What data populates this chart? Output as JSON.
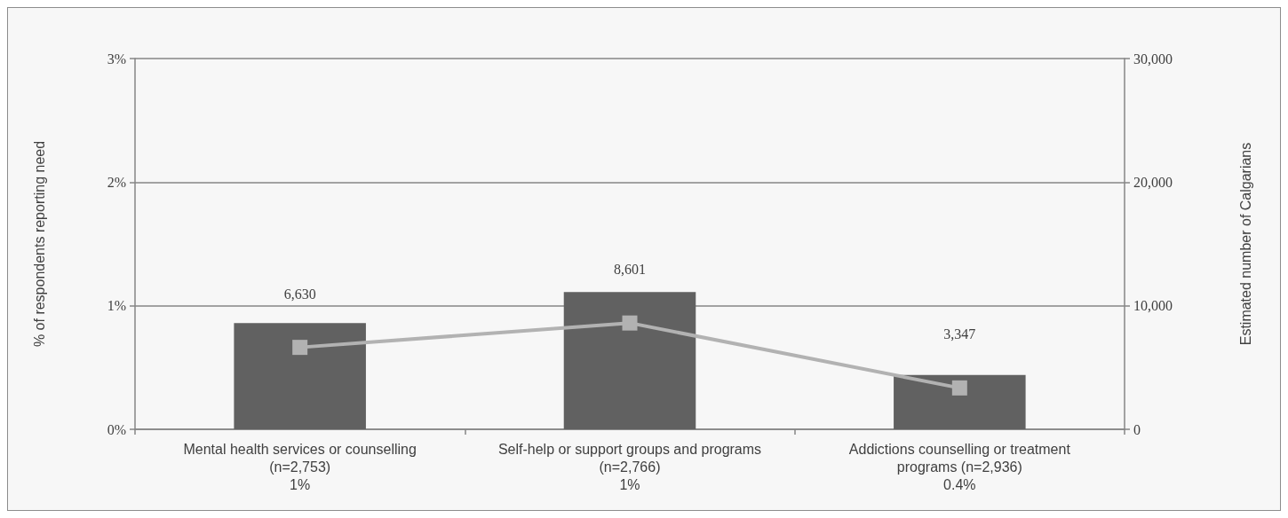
{
  "chart_data": {
    "type": "bar",
    "ylabel": "% of respondents reporting need",
    "y2label": "Estimated number of Calgarians",
    "categories": [
      "Mental health services or counselling\n(n=2,753)\n1%",
      "Self-help or support groups and programs\n(n=2,766)\n1%",
      "Addictions counselling or treatment\nprograms (n=2,936)\n0.4%"
    ],
    "series": [
      {
        "color": "#616161",
        "values": [
          0.86,
          1.11,
          0.44
        ]
      },
      {
        "type": "line",
        "axis": "y2",
        "color": "#b2b2b2",
        "values": [
          6630,
          8601,
          3347
        ],
        "value_labels": [
          "6,630",
          "8,601",
          "3,347"
        ]
      }
    ],
    "ylim": [
      0,
      3
    ],
    "yticks": [
      {
        "value": 0,
        "label": "0%"
      },
      {
        "value": 1,
        "label": "1%"
      },
      {
        "value": 2,
        "label": "2%"
      },
      {
        "value": 3,
        "label": "3%"
      }
    ],
    "y2lim": [
      0,
      30000
    ],
    "y2ticks": [
      0,
      {
        "value": 10000,
        "label": "10,000"
      },
      {
        "value": 20000,
        "label": "20,000"
      },
      {
        "value": 30000,
        "label": "30,000"
      }
    ],
    "grid": "y",
    "marker": "square",
    "line_style": "solid"
  }
}
